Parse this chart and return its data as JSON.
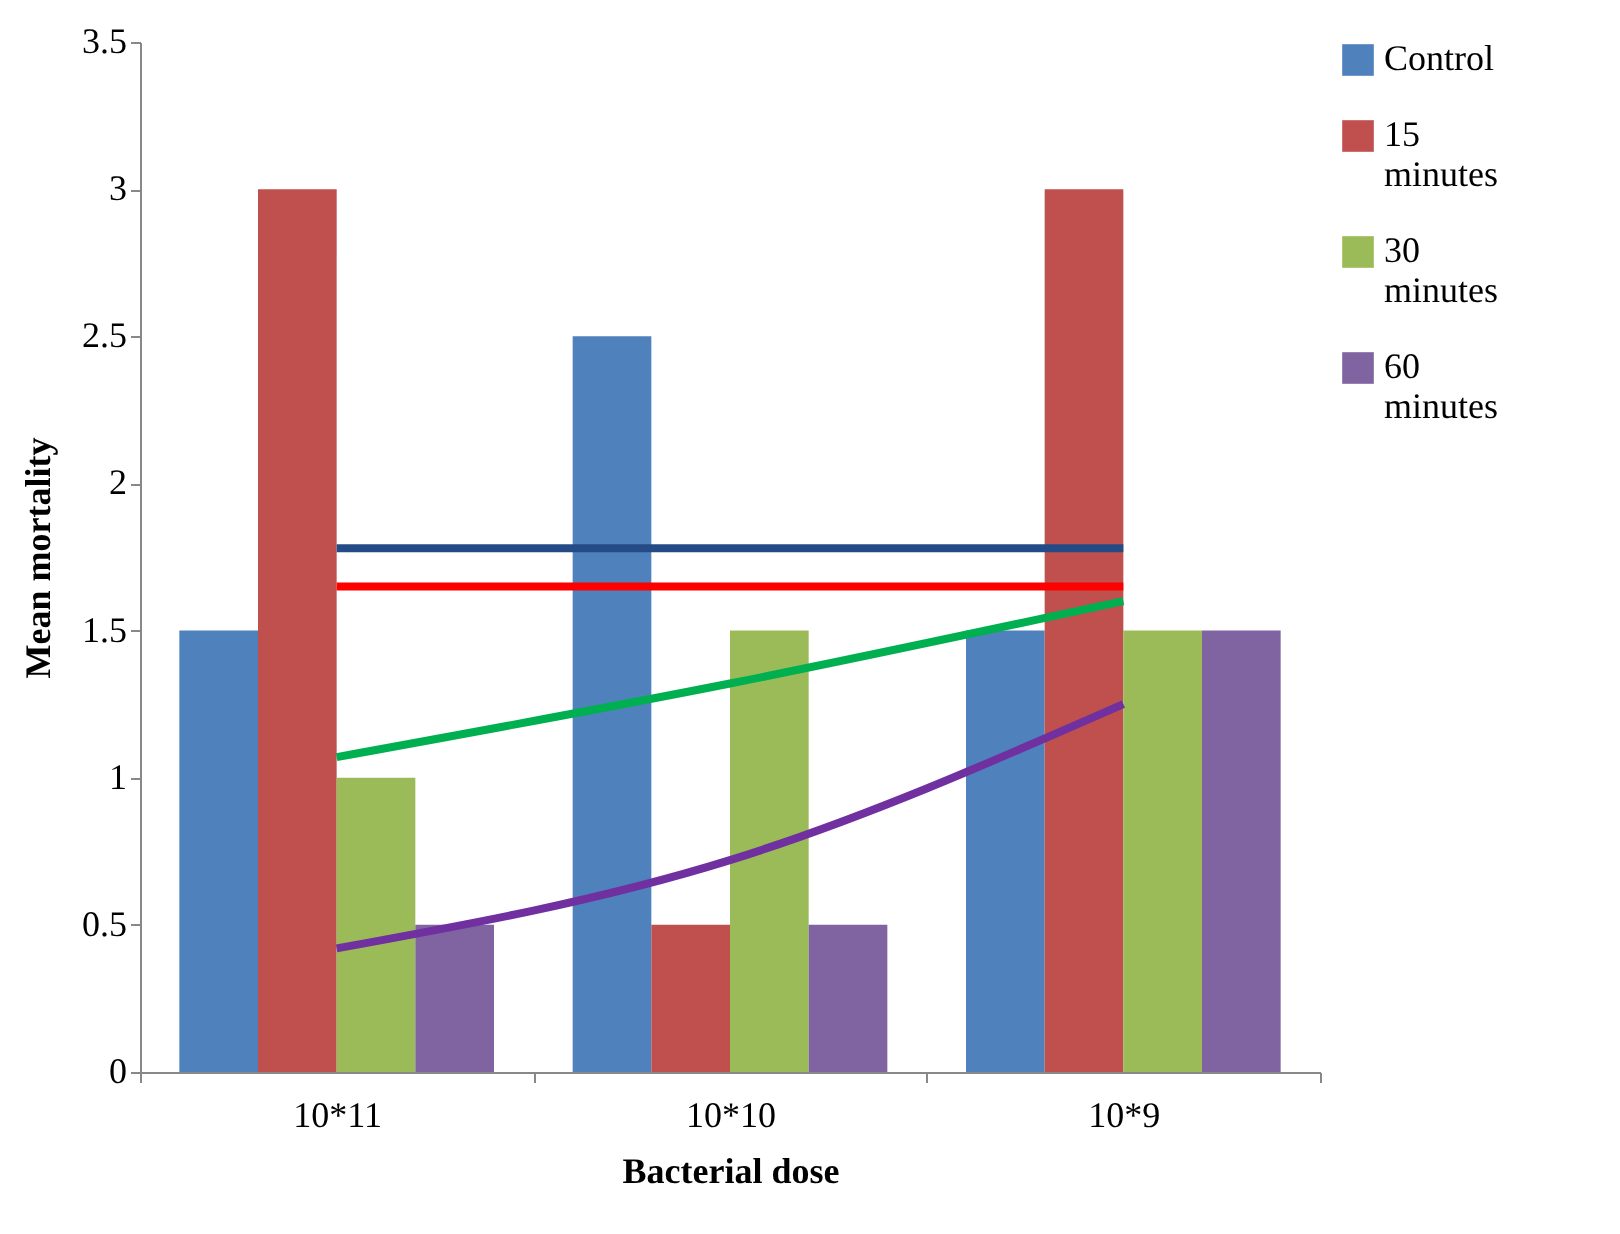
{
  "chart_data": {
    "type": "bar",
    "xlabel": "Bacterial dose",
    "ylabel": "Mean mortality",
    "categories": [
      "10*11",
      "10*10",
      "10*9"
    ],
    "series": [
      {
        "name": "Control",
        "color": "#4f81bd",
        "values": [
          1.5,
          2.5,
          1.5
        ]
      },
      {
        "name": "15 minutes",
        "color": "#c0504d",
        "values": [
          3,
          0.5,
          3
        ]
      },
      {
        "name": "30 minutes",
        "color": "#9bbb59",
        "values": [
          1,
          1.5,
          1.5
        ]
      },
      {
        "name": "60 minutes",
        "color": "#8064a2",
        "values": [
          0.5,
          0.5,
          1.5
        ]
      },
      {
        "type": "line",
        "color": "#254b86",
        "x": [
          "10*11",
          "10*10",
          "10*9"
        ],
        "values": [
          1.78,
          1.78,
          1.78
        ]
      },
      {
        "type": "line",
        "color": "#ff0000",
        "x": [
          "10*11",
          "10*10",
          "10*9"
        ],
        "values": [
          1.65,
          1.65,
          1.65
        ]
      },
      {
        "type": "line",
        "color": "#00b050",
        "x": [
          "10*11",
          "10*10",
          "10*9"
        ],
        "values": [
          1.07,
          1.32,
          1.6
        ]
      },
      {
        "type": "line",
        "color": "#7030a0",
        "x": [
          "10*11",
          "10*10",
          "10*9"
        ],
        "values": [
          0.42,
          0.72,
          1.25
        ]
      }
    ],
    "ylim": [
      0,
      3.5
    ],
    "yticks": [
      0,
      0.5,
      1,
      1.5,
      2,
      2.5,
      3,
      3.5
    ],
    "grid": false,
    "legend": "right"
  }
}
